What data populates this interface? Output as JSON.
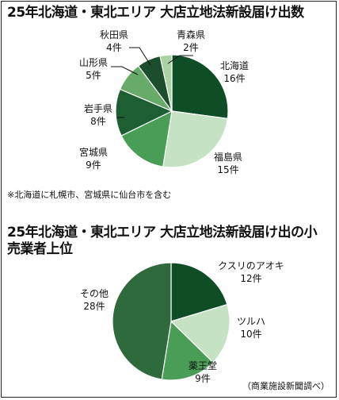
{
  "chart_data": [
    {
      "type": "pie",
      "title": "25年北海道・東北エリア 大店立地法新設届け出数",
      "slices": [
        {
          "name": "北海道",
          "value": 16,
          "value_label": "16件",
          "color": "#0e4d26"
        },
        {
          "name": "福島県",
          "value": 15,
          "value_label": "15件",
          "color": "#c5e3c4"
        },
        {
          "name": "宮城県",
          "value": 9,
          "value_label": "9件",
          "color": "#4a9d57"
        },
        {
          "name": "岩手県",
          "value": 8,
          "value_label": "8件",
          "color": "#1d5e33"
        },
        {
          "name": "山形県",
          "value": 5,
          "value_label": "5件",
          "color": "#68aa6a"
        },
        {
          "name": "秋田県",
          "value": 4,
          "value_label": "4件",
          "color": "#1c4d2c"
        },
        {
          "name": "青森県",
          "value": 2,
          "value_label": "2件",
          "color": "#a9d3a5"
        }
      ],
      "note": "※北海道に札幌市、宮城県に仙台市を含む"
    },
    {
      "type": "pie",
      "title_line1": "25年北海道・東北エリア 大店立地法新設届け出の小",
      "title_line2": "売業者上位",
      "slices": [
        {
          "name": "クスリのアオキ",
          "value": 12,
          "value_label": "12件",
          "color": "#0e4d26"
        },
        {
          "name": "ツルハ",
          "value": 10,
          "value_label": "10件",
          "color": "#c5e3c4"
        },
        {
          "name": "薬王堂",
          "value": 9,
          "value_label": "9件",
          "color": "#4a9d57"
        },
        {
          "name": "その他",
          "value": 28,
          "value_label": "28件",
          "color": "#2f6a3c"
        }
      ],
      "source": "（商業施設新聞調べ）"
    }
  ]
}
